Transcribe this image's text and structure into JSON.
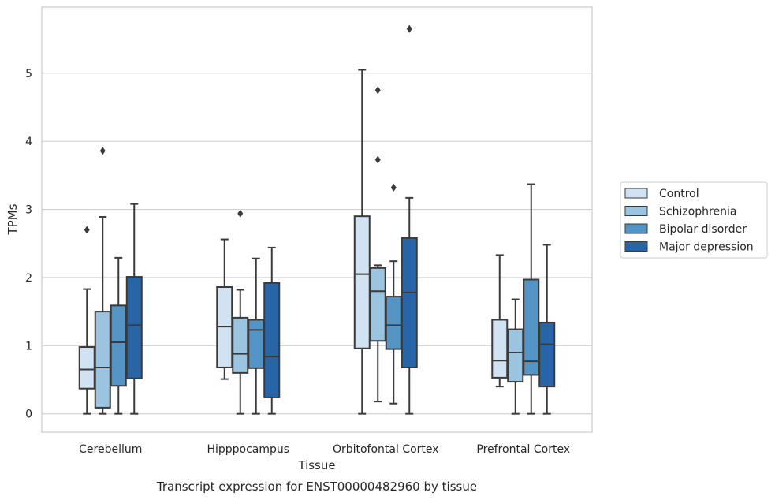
{
  "chart_data": {
    "type": "box",
    "caption": "Transcript expression for ENST00000482960 by tissue",
    "xlabel": "Tissue",
    "ylabel": "TPMs",
    "ylim": [
      -0.27,
      5.97
    ],
    "yticks": [
      0,
      1,
      2,
      3,
      4,
      5
    ],
    "grid": true,
    "legend_position": "right",
    "categories": [
      "Cerebellum",
      "Hipppocampus",
      "Orbitofontal Cortex",
      "Prefrontal Cortex"
    ],
    "series": [
      {
        "name": "Control",
        "color": "#d1e2f2",
        "boxes": [
          {
            "whisker_low": 0.0,
            "q1": 0.37,
            "median": 0.65,
            "q3": 0.98,
            "whisker_high": 1.83,
            "outliers": [
              2.7
            ]
          },
          {
            "whisker_low": 0.51,
            "q1": 0.68,
            "median": 1.28,
            "q3": 1.86,
            "whisker_high": 2.56,
            "outliers": []
          },
          {
            "whisker_low": 0.0,
            "q1": 0.96,
            "median": 2.05,
            "q3": 2.9,
            "whisker_high": 5.05,
            "outliers": []
          },
          {
            "whisker_low": 0.4,
            "q1": 0.53,
            "median": 0.78,
            "q3": 1.38,
            "whisker_high": 2.33,
            "outliers": []
          }
        ]
      },
      {
        "name": "Schizophrenia",
        "color": "#9ac4df",
        "boxes": [
          {
            "whisker_low": 0.0,
            "q1": 0.09,
            "median": 0.68,
            "q3": 1.5,
            "whisker_high": 2.89,
            "outliers": [
              3.86
            ]
          },
          {
            "whisker_low": 0.0,
            "q1": 0.6,
            "median": 0.88,
            "q3": 1.41,
            "whisker_high": 1.82,
            "outliers": [
              2.94
            ]
          },
          {
            "whisker_low": 0.18,
            "q1": 1.07,
            "median": 1.8,
            "q3": 2.14,
            "whisker_high": 2.18,
            "outliers": [
              3.73,
              4.75
            ]
          },
          {
            "whisker_low": 0.0,
            "q1": 0.47,
            "median": 0.9,
            "q3": 1.24,
            "whisker_high": 1.68,
            "outliers": []
          }
        ]
      },
      {
        "name": "Bipolar disorder",
        "color": "#5595c5",
        "boxes": [
          {
            "whisker_low": 0.0,
            "q1": 0.41,
            "median": 1.05,
            "q3": 1.59,
            "whisker_high": 2.29,
            "outliers": []
          },
          {
            "whisker_low": 0.0,
            "q1": 0.67,
            "median": 1.23,
            "q3": 1.38,
            "whisker_high": 2.28,
            "outliers": []
          },
          {
            "whisker_low": 0.15,
            "q1": 0.95,
            "median": 1.3,
            "q3": 1.72,
            "whisker_high": 2.24,
            "outliers": [
              3.32
            ]
          },
          {
            "whisker_low": 0.0,
            "q1": 0.57,
            "median": 0.77,
            "q3": 1.97,
            "whisker_high": 3.37,
            "outliers": []
          }
        ]
      },
      {
        "name": "Major depression",
        "color": "#2765a7",
        "boxes": [
          {
            "whisker_low": 0.0,
            "q1": 0.52,
            "median": 1.3,
            "q3": 2.01,
            "whisker_high": 3.08,
            "outliers": []
          },
          {
            "whisker_low": 0.0,
            "q1": 0.24,
            "median": 0.84,
            "q3": 1.92,
            "whisker_high": 2.44,
            "outliers": []
          },
          {
            "whisker_low": 0.0,
            "q1": 0.68,
            "median": 1.78,
            "q3": 2.58,
            "whisker_high": 3.17,
            "outliers": [
              5.65
            ]
          },
          {
            "whisker_low": 0.0,
            "q1": 0.4,
            "median": 1.02,
            "q3": 1.34,
            "whisker_high": 2.48,
            "outliers": []
          }
        ]
      }
    ]
  }
}
